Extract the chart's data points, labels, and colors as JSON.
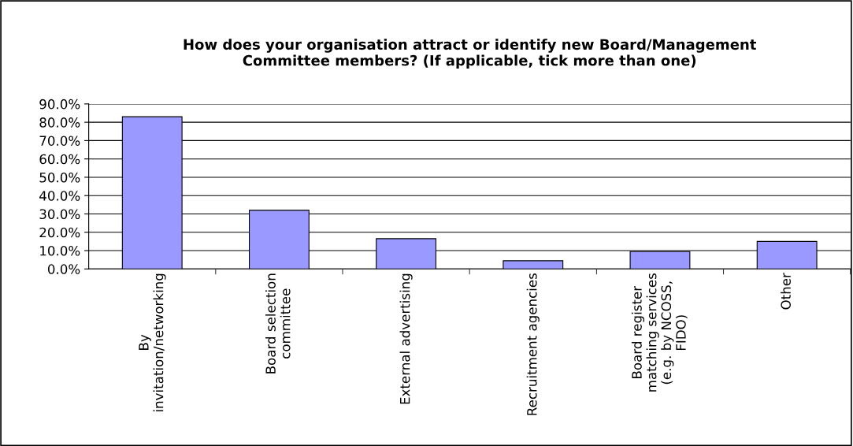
{
  "chart_data": {
    "type": "bar",
    "title": "How does your organisation attract or identify new Board/Management\nCommittee members? (If applicable, tick more than one)",
    "categories": [
      "By\ninvitation/networking",
      "Board selection\ncommittee",
      "External advertising",
      "Recruitment agencies",
      "Board register\nmatching services\n(e.g. by NCOSS,\nFIDO)",
      "Other"
    ],
    "values": [
      83.0,
      32.0,
      16.5,
      4.5,
      9.5,
      15.0
    ],
    "color": "#9999ff",
    "ylim": [
      0,
      90
    ],
    "yticks": [
      {
        "value": 0,
        "label": "0.0%"
      },
      {
        "value": 10,
        "label": "10.0%"
      },
      {
        "value": 20,
        "label": "20.0%"
      },
      {
        "value": 30,
        "label": "30.0%"
      },
      {
        "value": 40,
        "label": "40.0%"
      },
      {
        "value": 50,
        "label": "50.0%"
      },
      {
        "value": 60,
        "label": "60.0%"
      },
      {
        "value": 70,
        "label": "70.0%"
      },
      {
        "value": 80,
        "label": "80.0%"
      },
      {
        "value": 90,
        "label": "90.0%"
      }
    ],
    "grid": "y"
  }
}
